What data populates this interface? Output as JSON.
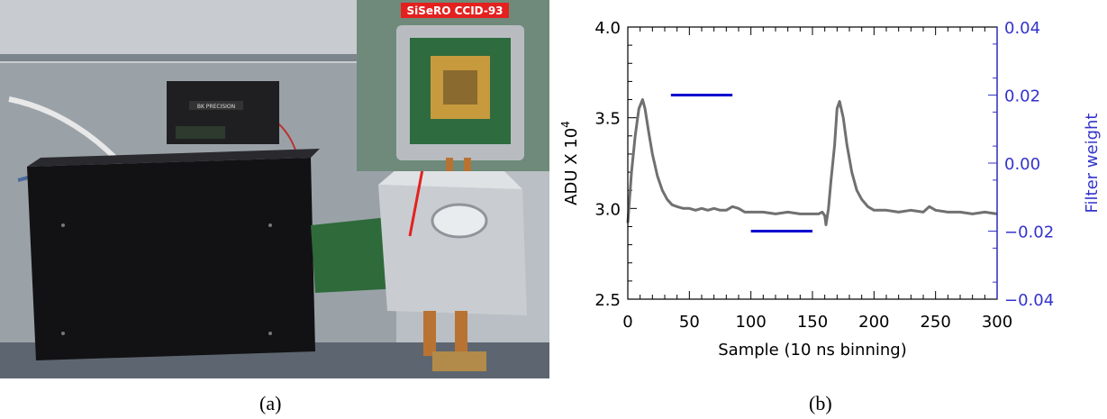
{
  "figure": {
    "panel_a": {
      "caption": "(a)",
      "inset_label": "SiSeRO CCID-93",
      "instrument_brand": "BK PRECISION"
    },
    "panel_b": {
      "caption": "(b)"
    }
  },
  "chart_data": {
    "type": "line",
    "xlabel": "Sample (10 ns binning)",
    "ylabel": "ADU X 10",
    "ylabel_exponent": "4",
    "y2label": "Filter weight",
    "xlim": [
      0,
      300
    ],
    "ylim": [
      2.5,
      4.0
    ],
    "y2lim": [
      -0.04,
      0.04
    ],
    "xticks": [
      "0",
      "50",
      "100",
      "150",
      "200",
      "250",
      "300"
    ],
    "yticks": [
      "2.5",
      "3.0",
      "3.5",
      "4.0"
    ],
    "y2ticks": [
      "−0.04",
      "−0.02",
      "0.00",
      "0.02",
      "0.04"
    ],
    "xtick_values": [
      0,
      50,
      100,
      150,
      200,
      250,
      300
    ],
    "ytick_values": [
      2.5,
      3.0,
      3.5,
      4.0
    ],
    "y2tick_values": [
      -0.04,
      -0.02,
      0.0,
      0.02,
      0.04
    ],
    "colors": {
      "signal": "#707070",
      "filter": "#0000d0",
      "right_axis": "#3333cc"
    },
    "series": [
      {
        "x": [
          0,
          3,
          6,
          9,
          12,
          14,
          17,
          20,
          24,
          28,
          32,
          36,
          40,
          45,
          50,
          55,
          60,
          65,
          70,
          75,
          80,
          85,
          90,
          95,
          100,
          110,
          120,
          130,
          140,
          150,
          155,
          158,
          160,
          161,
          163,
          165,
          168,
          170,
          172,
          175,
          178,
          182,
          186,
          190,
          195,
          200,
          210,
          220,
          230,
          240,
          245,
          250,
          260,
          270,
          280,
          290,
          300
        ],
        "values": [
          2.92,
          3.2,
          3.4,
          3.55,
          3.6,
          3.55,
          3.42,
          3.3,
          3.18,
          3.1,
          3.05,
          3.02,
          3.01,
          3.0,
          3.0,
          2.99,
          3.0,
          2.99,
          3.0,
          2.99,
          2.99,
          3.01,
          3.0,
          2.98,
          2.98,
          2.98,
          2.97,
          2.98,
          2.97,
          2.97,
          2.97,
          2.98,
          2.96,
          2.91,
          3.0,
          3.15,
          3.35,
          3.55,
          3.59,
          3.5,
          3.35,
          3.2,
          3.1,
          3.05,
          3.01,
          2.99,
          2.99,
          2.98,
          2.99,
          2.98,
          3.01,
          2.99,
          2.98,
          2.98,
          2.97,
          2.98,
          2.97
        ]
      },
      {
        "axis": "right",
        "segments": [
          {
            "x": [
              35,
              85
            ],
            "value": 0.02
          },
          {
            "x": [
              100,
              150
            ],
            "value": -0.02
          }
        ]
      }
    ]
  }
}
